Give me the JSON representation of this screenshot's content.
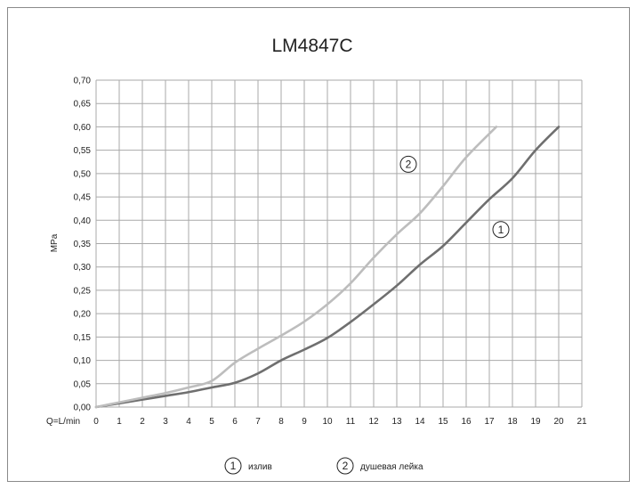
{
  "chart_data": {
    "type": "line",
    "title": "LM4847C",
    "xlabel": "Q=L/min",
    "ylabel": "MPa",
    "xlim": [
      0,
      21
    ],
    "ylim": [
      0,
      0.7
    ],
    "x_ticks": [
      "0",
      "1",
      "2",
      "3",
      "4",
      "5",
      "6",
      "7",
      "8",
      "9",
      "10",
      "11",
      "12",
      "13",
      "14",
      "15",
      "16",
      "17",
      "18",
      "19",
      "20",
      "21"
    ],
    "y_ticks": [
      "0,00",
      "0,05",
      "0,10",
      "0,15",
      "0,20",
      "0,25",
      "0,30",
      "0,35",
      "0,40",
      "0,45",
      "0,50",
      "0,55",
      "0,60",
      "0,65",
      "0,70"
    ],
    "grid": true,
    "series": [
      {
        "marker": "1",
        "name": "излив",
        "color": "#6f6f6f",
        "x": [
          0,
          1,
          2,
          3,
          4,
          5,
          6,
          7,
          8,
          9,
          10,
          11,
          12,
          13,
          14,
          15,
          16,
          17,
          18,
          19,
          20
        ],
        "y": [
          0,
          0.008,
          0.016,
          0.024,
          0.032,
          0.042,
          0.052,
          0.072,
          0.1,
          0.123,
          0.148,
          0.182,
          0.22,
          0.26,
          0.305,
          0.345,
          0.395,
          0.445,
          0.49,
          0.55,
          0.6
        ]
      },
      {
        "marker": "2",
        "name": "душевая лейка",
        "color": "#bdbdbd",
        "x": [
          0,
          1,
          2,
          3,
          4,
          5,
          6,
          7,
          8,
          9,
          10,
          11,
          12,
          13,
          14,
          15,
          16,
          17.3
        ],
        "y": [
          0,
          0.01,
          0.02,
          0.03,
          0.042,
          0.056,
          0.095,
          0.125,
          0.153,
          0.183,
          0.22,
          0.265,
          0.32,
          0.37,
          0.415,
          0.473,
          0.535,
          0.6
        ]
      }
    ],
    "annotations": [
      {
        "label": "2",
        "x": 13.5,
        "y": 0.52
      },
      {
        "label": "1",
        "x": 17.5,
        "y": 0.38
      }
    ],
    "legend_position": "bottom"
  }
}
